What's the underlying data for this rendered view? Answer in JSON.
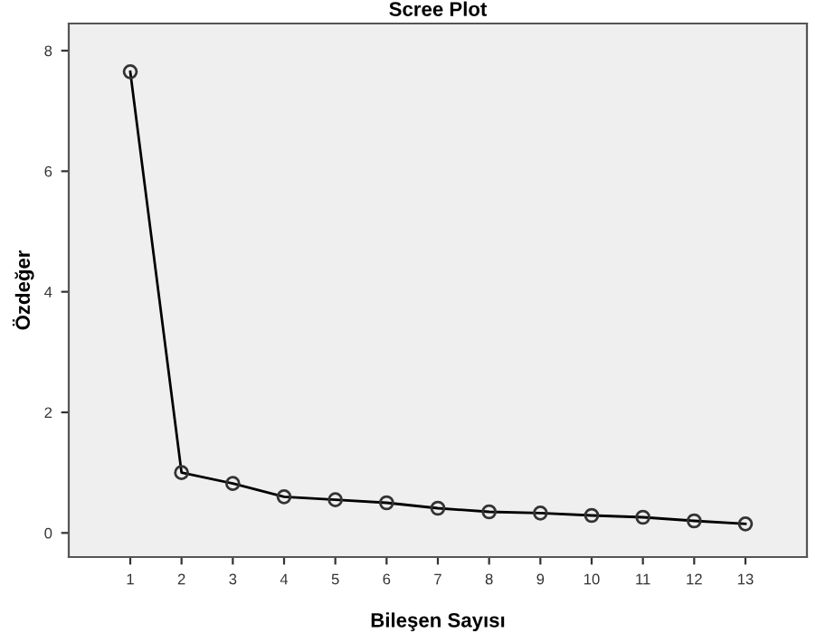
{
  "chart_data": {
    "type": "line",
    "title": "Scree Plot",
    "xlabel": "Bileşen Sayısı",
    "ylabel": "Özdeğer",
    "x": [
      1,
      2,
      3,
      4,
      5,
      6,
      7,
      8,
      9,
      10,
      11,
      12,
      13
    ],
    "series": [
      {
        "color": "#000000",
        "values": [
          7.65,
          1.0,
          0.82,
          0.6,
          0.55,
          0.5,
          0.41,
          0.35,
          0.33,
          0.29,
          0.26,
          0.2,
          0.15
        ]
      }
    ],
    "xlim": [
      -0.2,
      14.2
    ],
    "xticks": [
      1,
      2,
      3,
      4,
      5,
      6,
      7,
      8,
      9,
      10,
      11,
      12,
      13
    ],
    "ylim": [
      -0.4,
      8.45
    ],
    "yticks": [
      0,
      2,
      4,
      6,
      8
    ],
    "grid": false,
    "legend": false,
    "marker": "circle",
    "line_style": "solid"
  }
}
